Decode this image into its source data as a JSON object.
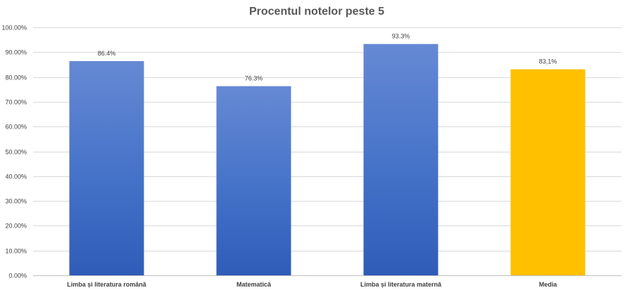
{
  "chart_data": {
    "type": "bar",
    "title": "Procentul notelor peste 5",
    "xlabel": "",
    "ylabel": "",
    "categories": [
      "Limba și literatura română",
      "Matematică",
      "Limba și literatura maternă",
      "Media"
    ],
    "values": [
      86.4,
      76.3,
      93.3,
      83.1
    ],
    "data_labels": [
      "86.4%",
      "76.3%",
      "93.3%",
      "83,1%"
    ],
    "ylim": [
      0,
      100
    ],
    "y_ticks": [
      0,
      10,
      20,
      30,
      40,
      50,
      60,
      70,
      80,
      90,
      100
    ],
    "y_tick_labels": [
      "0.00%",
      "10.00%",
      "20.00%",
      "30.00%",
      "40.00%",
      "50.00%",
      "60.00%",
      "70.00%",
      "80.00%",
      "90.00%",
      "100.00%"
    ],
    "grid": true,
    "legend": "none",
    "bar_colors": [
      "#4472c4",
      "#4472c4",
      "#4472c4",
      "#ffc000"
    ]
  }
}
